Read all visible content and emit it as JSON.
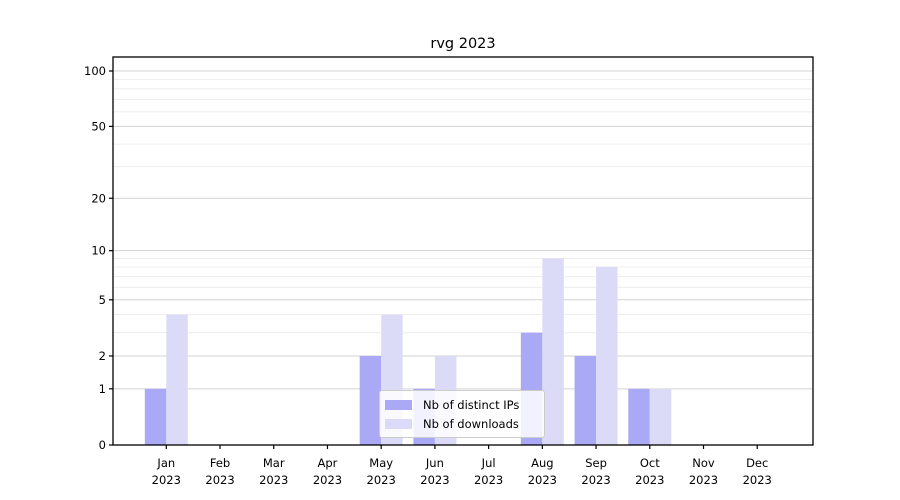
{
  "title": "rvg 2023",
  "chart_data": {
    "type": "bar",
    "title": "rvg 2023",
    "categories": [
      "Jan",
      "Feb",
      "Mar",
      "Apr",
      "May",
      "Jun",
      "Jul",
      "Aug",
      "Sep",
      "Oct",
      "Nov",
      "Dec"
    ],
    "category_year": "2023",
    "series": [
      {
        "name": "Nb of distinct IPs",
        "color": "#a9a9f5",
        "values": [
          1,
          0,
          0,
          0,
          2,
          1,
          0,
          3,
          2,
          1,
          0,
          0
        ]
      },
      {
        "name": "Nb of downloads",
        "color": "#dbdbf8",
        "values": [
          4,
          0,
          0,
          0,
          4,
          2,
          0,
          9,
          8,
          1,
          0,
          0
        ]
      }
    ],
    "yscale": "log1p",
    "ylim": [
      0,
      120
    ],
    "y_major_ticks": [
      0,
      1,
      2,
      5,
      10,
      20,
      50,
      100
    ],
    "y_minor_gridlines": [
      3,
      4,
      6,
      7,
      8,
      9,
      30,
      40,
      60,
      70,
      80,
      90
    ],
    "grid": true,
    "legend_position": "lower center",
    "colors": {
      "major_gridline": "#d3d3d3",
      "minor_gridline": "#ececec",
      "spine": "#000000",
      "tick_label": "#000000"
    }
  }
}
